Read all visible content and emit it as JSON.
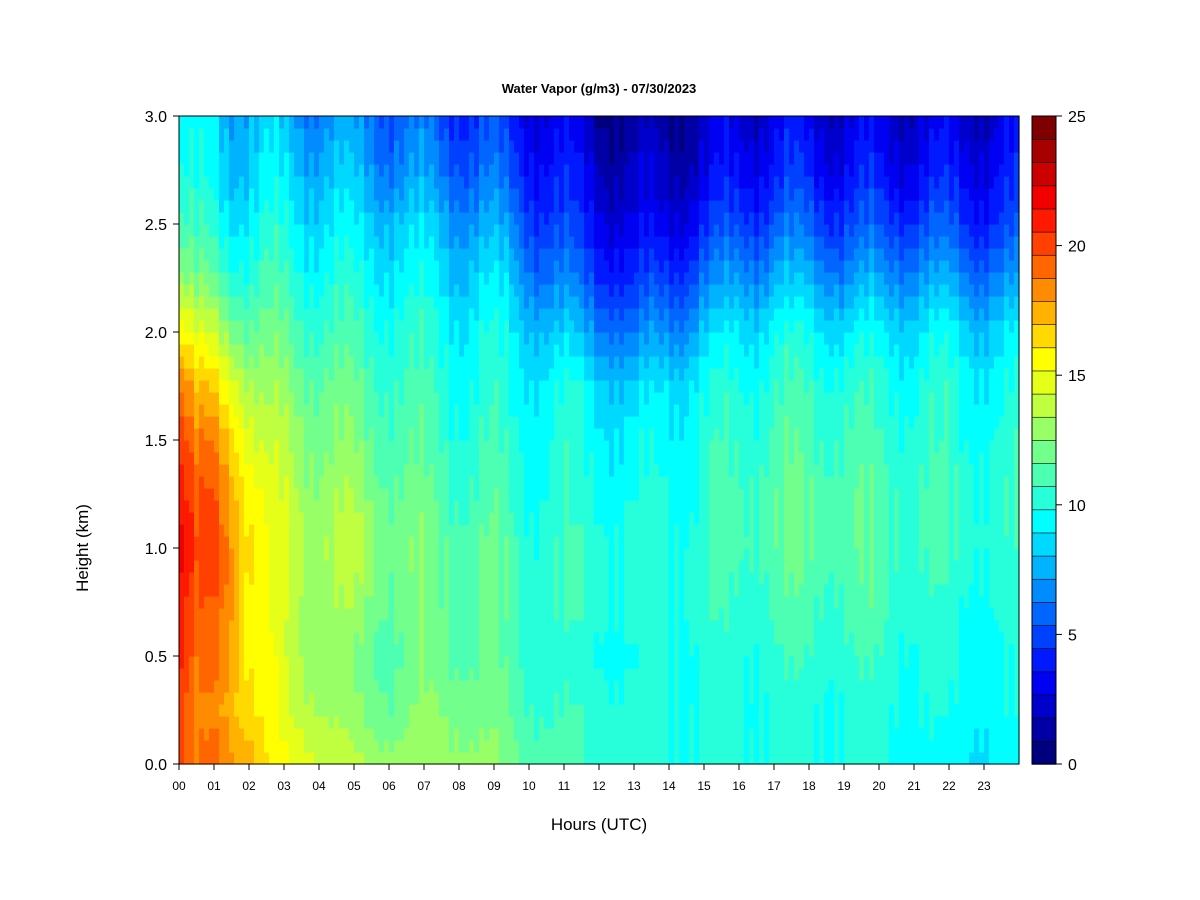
{
  "chart_data": {
    "type": "heatmap",
    "title": "Water Vapor (g/m3) - 07/30/2023",
    "xlabel": "Hours (UTC)",
    "ylabel": "Height (km)",
    "x_ticks": [
      "00",
      "01",
      "02",
      "03",
      "04",
      "05",
      "06",
      "07",
      "08",
      "09",
      "10",
      "11",
      "12",
      "13",
      "14",
      "15",
      "16",
      "17",
      "18",
      "19",
      "20",
      "21",
      "22",
      "23"
    ],
    "xlim": [
      0,
      24
    ],
    "y_ticks": [
      "0.0",
      "0.5",
      "1.0",
      "1.5",
      "2.0",
      "2.5",
      "3.0"
    ],
    "ylim": [
      0,
      3.0
    ],
    "colorbar": {
      "range": [
        0,
        25
      ],
      "step": 1,
      "tick_labels": [
        "0",
        "5",
        "10",
        "15",
        "20",
        "25"
      ],
      "colors": [
        "#00007f",
        "#0000a6",
        "#0000cc",
        "#0000f2",
        "#0019ff",
        "#0040ff",
        "#0066ff",
        "#008cff",
        "#00b3ff",
        "#00d9ff",
        "#00ffff",
        "#26ffd9",
        "#4cffb3",
        "#73ff8c",
        "#99ff66",
        "#bfff40",
        "#e6ff19",
        "#ffff00",
        "#ffd900",
        "#ffb300",
        "#ff8c00",
        "#ff6600",
        "#ff4000",
        "#ff1900",
        "#f20000",
        "#cc0000",
        "#a60000",
        "#7f0000"
      ]
    },
    "hours": [
      0,
      0.5,
      1,
      1.5,
      2,
      2.5,
      3,
      4,
      5,
      6,
      7,
      8,
      9,
      9.5,
      10,
      11,
      12,
      13,
      14,
      15,
      16,
      17,
      18,
      19,
      20,
      21,
      22,
      23,
      24
    ],
    "heights_km": [
      0,
      0.25,
      0.5,
      0.75,
      1,
      1.25,
      1.5,
      1.75,
      2,
      2.25,
      2.5,
      2.75,
      3
    ],
    "values": [
      [
        20,
        20.5,
        21,
        21.5,
        22,
        21.5,
        20.5,
        19,
        16,
        13,
        11,
        10,
        9
      ],
      [
        18.5,
        18,
        18.5,
        19,
        19.5,
        19,
        18,
        16.5,
        14,
        11.5,
        10,
        9,
        8.5
      ],
      [
        19,
        18.5,
        19,
        19.5,
        20,
        19.5,
        18.5,
        16.5,
        14,
        11.5,
        10,
        9,
        8.5
      ],
      [
        18.5,
        17.5,
        18,
        18.5,
        18.5,
        18,
        17,
        15.5,
        13,
        11,
        9.5,
        8.5,
        8
      ],
      [
        17.5,
        16.5,
        16,
        16,
        16.5,
        16,
        15,
        13.5,
        12,
        10.5,
        9.5,
        8.5,
        8
      ],
      [
        16,
        15.5,
        15.5,
        15,
        15,
        14.5,
        13.5,
        12.5,
        11.5,
        10.5,
        9.5,
        8.5,
        8
      ],
      [
        15.5,
        14.5,
        14,
        14,
        14,
        14,
        13.5,
        12.5,
        11.5,
        10.5,
        9.5,
        8.5,
        7.5
      ],
      [
        14.5,
        13.5,
        13,
        13,
        13.5,
        13,
        12.5,
        12,
        11,
        10,
        9,
        8,
        7
      ],
      [
        13.5,
        12.5,
        12,
        13,
        13.5,
        13,
        12,
        11.5,
        10.5,
        9.5,
        8.5,
        7.5,
        6.5
      ],
      [
        13,
        12,
        11.5,
        12,
        12.5,
        12,
        11.5,
        11,
        10.5,
        9.5,
        8.5,
        7,
        6
      ],
      [
        13,
        12.5,
        12,
        12,
        12,
        11.5,
        11,
        10.5,
        10,
        9,
        8,
        6.5,
        5.5
      ],
      [
        13,
        12.5,
        11.5,
        11.5,
        11.5,
        11,
        10.5,
        10,
        9.5,
        8.5,
        7.5,
        6,
        5
      ],
      [
        12.5,
        12,
        11.5,
        11.5,
        11.5,
        11,
        10.5,
        10,
        9.5,
        8.5,
        7,
        5.5,
        4.5
      ],
      [
        12,
        11.5,
        11,
        11,
        11,
        10.5,
        10,
        9.5,
        9,
        8,
        6.5,
        5,
        4
      ],
      [
        11.5,
        11,
        10.5,
        10.5,
        10.5,
        10,
        10,
        9.5,
        8.5,
        7,
        5.5,
        4.5,
        3.5
      ],
      [
        11,
        10.5,
        10,
        10.5,
        10.5,
        10,
        10,
        9.5,
        8,
        6,
        4.5,
        3.5,
        2.5
      ],
      [
        10.5,
        10.5,
        10,
        10.5,
        10.5,
        10,
        9.5,
        9,
        7,
        5,
        3.5,
        2.5,
        1.5
      ],
      [
        10,
        10,
        9.5,
        10,
        10,
        9.5,
        9,
        8,
        6,
        4,
        2.5,
        1.5,
        1
      ],
      [
        10,
        10,
        10,
        10,
        10,
        10,
        9.5,
        9,
        7,
        5,
        3,
        2,
        1.5
      ],
      [
        10,
        10,
        10,
        10.5,
        10.5,
        10,
        10,
        9.5,
        8,
        6,
        4,
        2.5,
        2
      ],
      [
        10,
        10,
        10,
        10.5,
        11,
        11,
        10.5,
        10,
        9,
        7,
        5,
        3.5,
        2.5
      ],
      [
        10,
        10,
        10.5,
        11,
        11.5,
        11.5,
        11,
        10.5,
        9.5,
        7.5,
        5.5,
        4,
        3
      ],
      [
        10,
        10,
        10.5,
        11,
        11.5,
        11.5,
        11,
        10.5,
        9.5,
        7.5,
        5.5,
        4,
        3
      ],
      [
        10,
        10,
        10.5,
        11,
        11.5,
        11.5,
        11,
        10.5,
        9,
        7,
        5,
        3.5,
        2.5
      ],
      [
        10,
        10,
        10.5,
        11,
        11,
        11,
        10.5,
        10,
        9,
        7,
        5,
        3.5,
        2.5
      ],
      [
        9.5,
        10,
        10,
        10.5,
        11,
        11,
        10.5,
        10,
        9,
        7,
        5,
        3.5,
        2.5
      ],
      [
        9,
        9.5,
        10,
        10,
        10.5,
        10.5,
        10,
        10,
        9,
        7,
        5,
        3.5,
        2.5
      ],
      [
        9,
        9.5,
        9.5,
        10,
        10.5,
        10.5,
        10,
        9.5,
        8.5,
        6.5,
        4.5,
        3.5,
        2.5
      ],
      [
        9,
        9.5,
        9.5,
        10,
        10,
        10,
        10,
        9.5,
        8.5,
        6.5,
        4.5,
        3.5,
        2.5
      ]
    ]
  }
}
